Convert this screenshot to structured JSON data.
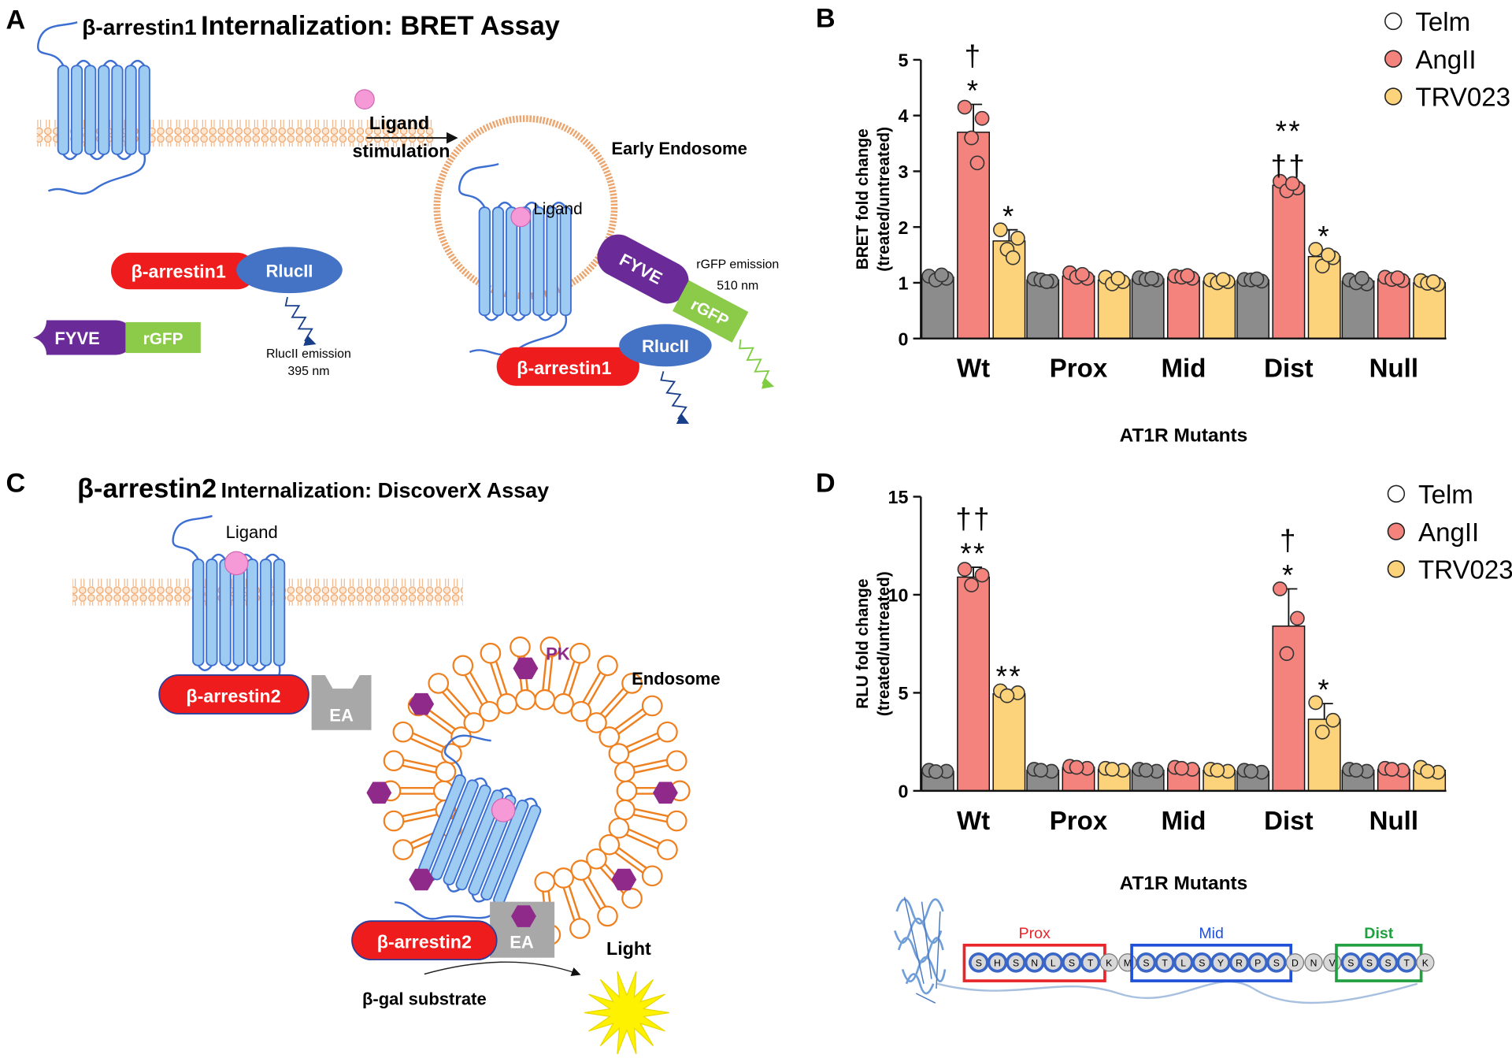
{
  "figure": {
    "panel_a": {
      "label": "A",
      "title": [
        "β-arrestin1",
        "Internalization: BRET Assay"
      ],
      "ligand_stimulation": [
        "Ligand",
        "stimulation"
      ],
      "endosome": "Early Endosome",
      "ligand": "Ligand",
      "arrestin": "β-arrestin1",
      "luciferase": "RlucII",
      "fyve": "FYVE",
      "gfp": "rGFP",
      "rluc_emission": [
        "RlucII emission",
        "395 nm"
      ],
      "gfp_emission": [
        "rGFP emission",
        "510 nm"
      ]
    },
    "panel_b": {
      "label": "B"
    },
    "panel_c": {
      "label": "C",
      "title": [
        "β-arrestin2",
        "Internalization: DiscoverX Assay"
      ],
      "ligand": "Ligand",
      "arrestin": "β-arrestin2",
      "enzyme_acceptor": "EA",
      "pk": "PK",
      "endosome": "Endosome",
      "light": "Light",
      "substrate": "β-gal substrate"
    },
    "panel_d": {
      "label": "D",
      "sequence": [
        {
          "name": "Prox",
          "color": "#e8262a",
          "residues": [
            "S",
            "H",
            "S",
            "N",
            "L",
            "S",
            "T"
          ]
        },
        {
          "residues": [
            "K",
            "M"
          ]
        },
        {
          "name": "Mid",
          "color": "#2050d8",
          "residues": [
            "S",
            "T",
            "L",
            "S",
            "Y",
            "R",
            "P",
            "S"
          ]
        },
        {
          "residues": [
            "D",
            "N",
            "V"
          ]
        },
        {
          "name": "Dist",
          "color": "#20a040",
          "residues": [
            "S",
            "S",
            "S",
            "T"
          ]
        },
        {
          "residues": [
            "K"
          ]
        }
      ]
    }
  },
  "chart_data": [
    {
      "type": "bar",
      "ylabel": [
        "BRET fold change",
        "(treated/untreated)"
      ],
      "xlabel": "AT1R Mutants",
      "categories": [
        "Wt",
        "Prox",
        "Mid",
        "Dist",
        "Null"
      ],
      "ylim": [
        0,
        5
      ],
      "yticks": [
        0,
        1,
        2,
        3,
        4,
        5
      ],
      "series": [
        {
          "name": "Telm",
          "color": "#8c8c8c",
          "marker_color": "#ffffff",
          "values": [
            1.1,
            1.05,
            1.07,
            1.05,
            1.03
          ],
          "errors": [
            0.06,
            0.04,
            0.04,
            0.03,
            0.05
          ],
          "points": [
            [
              1.12,
              1.08,
              1.05,
              1.14
            ],
            [
              1.07,
              1.03,
              1.05,
              1.02
            ],
            [
              1.09,
              1.05,
              1.06,
              1.08
            ],
            [
              1.06,
              1.03,
              1.05,
              1.07
            ],
            [
              1.05,
              0.98,
              1.0,
              1.08
            ]
          ],
          "annotations": [
            null,
            null,
            null,
            null,
            null
          ]
        },
        {
          "name": "AngII",
          "color": "#f4837d",
          "values": [
            3.7,
            1.12,
            1.1,
            2.75,
            1.07
          ],
          "errors": [
            0.5,
            0.07,
            0.05,
            0.1,
            0.05
          ],
          "points": [
            [
              4.15,
              3.95,
              3.6,
              3.15
            ],
            [
              1.18,
              1.08,
              1.1,
              1.15
            ],
            [
              1.12,
              1.08,
              1.1,
              1.13
            ],
            [
              2.82,
              2.7,
              2.65,
              2.78
            ],
            [
              1.1,
              1.04,
              1.06,
              1.09
            ]
          ],
          "annotations": [
            [
              "†",
              "*"
            ],
            null,
            null,
            [
              "**",
              "††"
            ],
            null
          ]
        },
        {
          "name": "TRV023",
          "color": "#fcd27a",
          "values": [
            1.75,
            1.05,
            1.03,
            1.47,
            1.0
          ],
          "errors": [
            0.2,
            0.07,
            0.04,
            0.12,
            0.05
          ],
          "points": [
            [
              1.95,
              1.8,
              1.6,
              1.45
            ],
            [
              1.1,
              1.02,
              0.98,
              1.08
            ],
            [
              1.05,
              1.02,
              1.0,
              1.06
            ],
            [
              1.6,
              1.45,
              1.3,
              1.5
            ],
            [
              1.04,
              0.97,
              0.99,
              1.02
            ]
          ],
          "annotations": [
            [
              "*"
            ],
            null,
            null,
            [
              "*"
            ],
            null
          ]
        }
      ]
    },
    {
      "type": "bar",
      "ylabel": [
        "RLU fold change",
        "(treated/untreated)"
      ],
      "xlabel": "AT1R Mutants",
      "categories": [
        "Wt",
        "Prox",
        "Mid",
        "Dist",
        "Null"
      ],
      "ylim": [
        0,
        15
      ],
      "yticks": [
        0,
        5,
        10,
        15
      ],
      "series": [
        {
          "name": "Telm",
          "color": "#8c8c8c",
          "marker_color": "#ffffff",
          "values": [
            1.0,
            1.05,
            1.05,
            1.0,
            1.05
          ],
          "errors": [
            0.08,
            0.1,
            0.1,
            0.1,
            0.1
          ],
          "points": [
            [
              1.05,
              1.0,
              0.98
            ],
            [
              1.1,
              1.0,
              1.05
            ],
            [
              1.1,
              1.0,
              1.05
            ],
            [
              1.05,
              0.95,
              1.0
            ],
            [
              1.1,
              1.0,
              1.05
            ]
          ],
          "annotations": [
            null,
            null,
            null,
            null,
            null
          ]
        },
        {
          "name": "AngII",
          "color": "#f4837d",
          "values": [
            10.9,
            1.2,
            1.15,
            8.4,
            1.1
          ],
          "errors": [
            0.5,
            0.1,
            0.1,
            1.9,
            0.1
          ],
          "points": [
            [
              11.3,
              11.0,
              10.5
            ],
            [
              1.25,
              1.15,
              1.2
            ],
            [
              1.2,
              1.1,
              1.15
            ],
            [
              10.3,
              8.8,
              7.0
            ],
            [
              1.15,
              1.05,
              1.1
            ]
          ],
          "annotations": [
            [
              "††",
              "**"
            ],
            null,
            null,
            [
              "†",
              "*"
            ],
            null
          ]
        },
        {
          "name": "TRV023",
          "color": "#fcd27a",
          "values": [
            4.95,
            1.1,
            1.05,
            3.65,
            1.05
          ],
          "errors": [
            0.2,
            0.1,
            0.1,
            0.8,
            0.1
          ],
          "points": [
            [
              5.1,
              5.0,
              4.85
            ],
            [
              1.15,
              1.05,
              1.1
            ],
            [
              1.1,
              1.0,
              1.05
            ],
            [
              4.5,
              3.6,
              3.0
            ],
            [
              1.2,
              0.95,
              1.0
            ]
          ],
          "annotations": [
            [
              "**"
            ],
            null,
            null,
            [
              "*"
            ],
            null
          ]
        }
      ]
    }
  ]
}
